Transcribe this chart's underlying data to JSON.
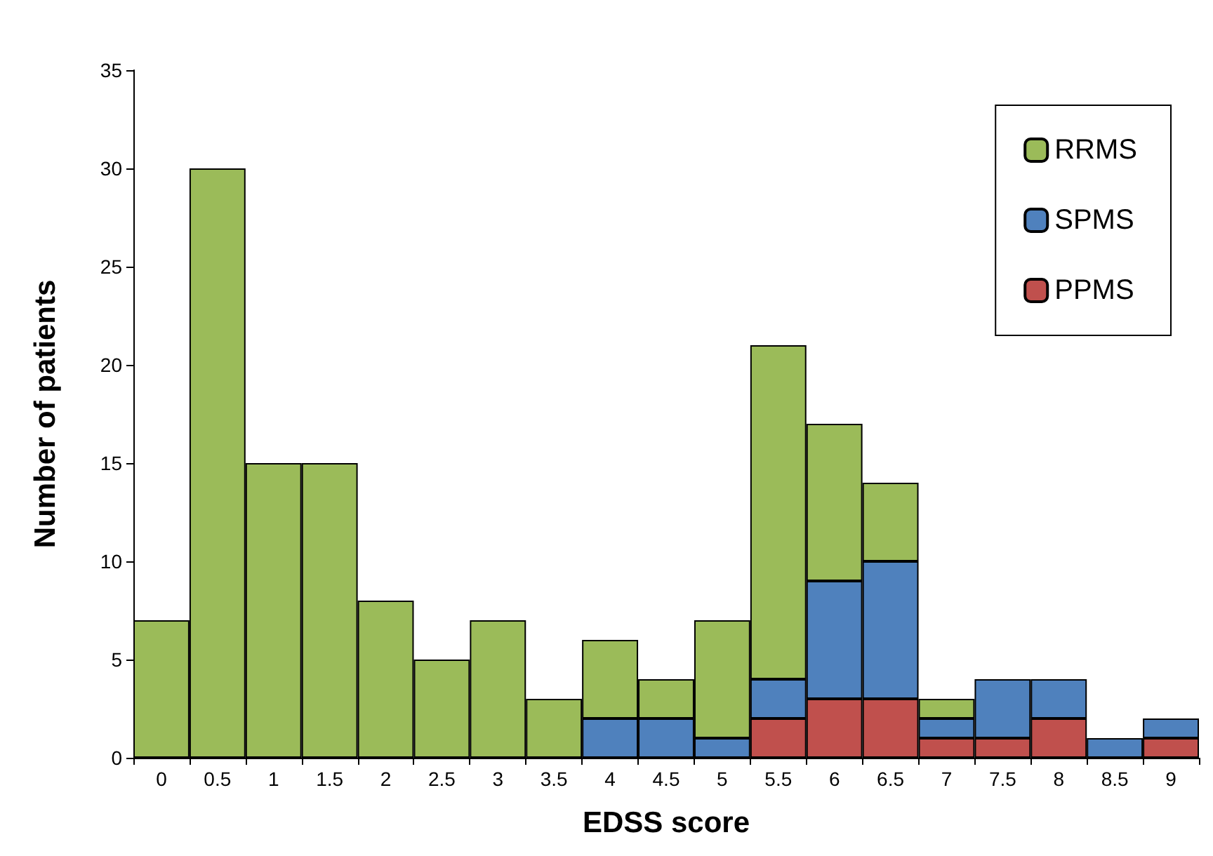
{
  "chart_data": {
    "type": "bar",
    "stacked": true,
    "xlabel": "EDSS score",
    "ylabel": "Number of patients",
    "categories": [
      "0",
      "0.5",
      "1",
      "1.5",
      "2",
      "2.5",
      "3",
      "3.5",
      "4",
      "4.5",
      "5",
      "5.5",
      "6",
      "6.5",
      "7",
      "7.5",
      "8",
      "8.5",
      "9"
    ],
    "series": [
      {
        "name": "PPMS",
        "color": "#c0504d",
        "values": [
          0,
          0,
          0,
          0,
          0,
          0,
          0,
          0,
          0,
          0,
          0,
          2,
          3,
          3,
          1,
          1,
          2,
          0,
          1
        ]
      },
      {
        "name": "SPMS",
        "color": "#4f81bd",
        "values": [
          0,
          0,
          0,
          0,
          0,
          0,
          0,
          0,
          2,
          2,
          1,
          2,
          6,
          7,
          1,
          3,
          2,
          1,
          1
        ]
      },
      {
        "name": "RRMS",
        "color": "#9bbb59",
        "values": [
          7,
          30,
          15,
          15,
          8,
          5,
          7,
          3,
          4,
          2,
          6,
          17,
          8,
          4,
          1,
          0,
          0,
          0,
          0
        ]
      }
    ],
    "ylim": [
      0,
      35
    ],
    "yticks": [
      0,
      5,
      10,
      15,
      20,
      25,
      30,
      35
    ],
    "grid": false,
    "legend": "top right"
  }
}
